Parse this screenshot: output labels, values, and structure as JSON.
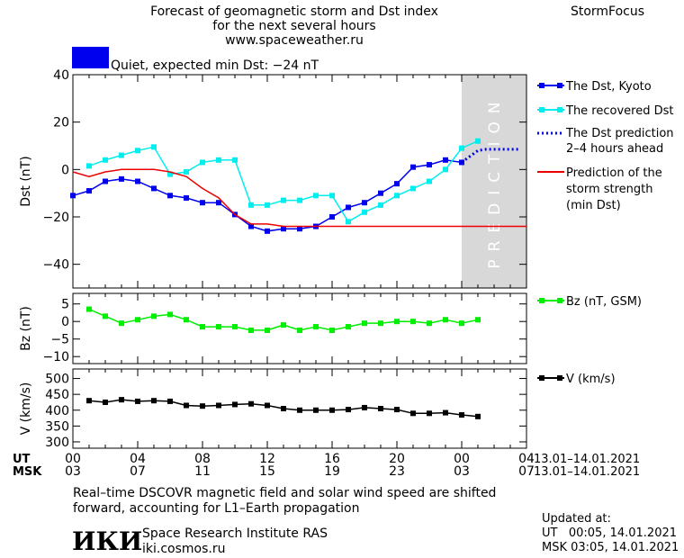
{
  "header": {
    "title_lines": [
      "Forecast of geomagnetic storm and Dst index",
      "for the next several hours",
      "www.spaceweather.ru"
    ],
    "brand": "StormFocus",
    "status_color": "#0000ee",
    "status_text": "Quiet, expected min Dst: −24 nT"
  },
  "bottom_axis": {
    "ut_label": "UT",
    "msk_label": "MSK",
    "ut_ticks": [
      "00",
      "04",
      "08",
      "12",
      "16",
      "20",
      "00",
      "04"
    ],
    "msk_ticks": [
      "03",
      "07",
      "11",
      "15",
      "19",
      "23",
      "03",
      "07"
    ],
    "ut_range": "13.01–14.01.2021",
    "msk_range": "13.01–14.01.2021"
  },
  "footer": {
    "note_lines": [
      "Real–time DSCOVR magnetic field and solar wind speed are shifted",
      "forward, accounting for L1–Earth propagation"
    ],
    "logo": "ИКИ",
    "institute": "Space Research Institute RAS",
    "site": "iki.cosmos.ru",
    "updated_label": "Updated at:",
    "updated_ut": "UT   00:05, 14.01.2021",
    "updated_msk": "MSK 03:05, 14.01.2021"
  },
  "chart_data": [
    {
      "type": "line",
      "ylabel": "Dst (nT)",
      "ylim": [
        -50,
        40
      ],
      "yticks": [
        -40,
        -20,
        0,
        20,
        40
      ],
      "xlim": [
        0,
        28
      ],
      "prediction_band": {
        "label": "PREDICTION",
        "x_from": 24,
        "x_to": 28,
        "color": "#d8d8d8"
      },
      "series": [
        {
          "name": "The Dst, Kyoto",
          "color": "#0000ee",
          "style": "solid-square",
          "x": [
            0,
            1,
            2,
            3,
            4,
            5,
            6,
            7,
            8,
            9,
            10,
            11,
            12,
            13,
            14,
            15,
            16,
            17,
            18,
            19,
            20,
            21,
            22,
            23,
            24
          ],
          "y": [
            -11,
            -9,
            -5,
            -4,
            -5,
            -8,
            -11,
            -12,
            -14,
            -14,
            -19,
            -24,
            -26,
            -25,
            -25,
            -24,
            -20,
            -16,
            -14,
            -10,
            -6,
            1,
            2,
            4,
            3
          ]
        },
        {
          "name": "The recovered Dst",
          "color": "#00eeee",
          "style": "solid-square",
          "x": [
            1,
            2,
            3,
            4,
            5,
            6,
            7,
            8,
            9,
            10,
            11,
            12,
            13,
            14,
            15,
            16,
            17,
            18,
            19,
            20,
            21,
            22,
            23,
            24,
            25
          ],
          "y": [
            1.5,
            4,
            6,
            8,
            9.5,
            -2,
            -1,
            3,
            4,
            4,
            -15,
            -15,
            -13,
            -13,
            -11,
            -11,
            -22,
            -18,
            -15,
            -11,
            -8,
            -5,
            0,
            9,
            12
          ]
        },
        {
          "name": "The Dst prediction 2–4 hours ahead",
          "color": "#0000ee",
          "style": "dotted",
          "x": [
            24,
            24.5,
            25,
            25.5,
            26,
            26.5,
            27,
            27.5
          ],
          "y": [
            3,
            5.5,
            8,
            8.5,
            8.5,
            8.5,
            8.5,
            8.5
          ]
        },
        {
          "name": "Prediction of the storm strength (min Dst)",
          "color": "#ee0000",
          "style": "solid",
          "x": [
            0,
            1,
            2,
            3,
            4,
            5,
            6,
            7,
            8,
            9,
            10,
            11,
            12,
            13,
            14,
            15,
            16,
            17,
            18,
            19,
            20,
            21,
            22,
            23,
            24,
            25,
            26,
            27,
            28
          ],
          "y": [
            -1,
            -3,
            -1,
            0,
            0,
            0,
            -1,
            -3,
            -8,
            -12,
            -19,
            -23,
            -23,
            -24,
            -24,
            -24,
            -24,
            -24,
            -24,
            -24,
            -24,
            -24,
            -24,
            -24,
            -24,
            -24,
            -24,
            -24,
            -24
          ]
        }
      ]
    },
    {
      "type": "line",
      "ylabel": "Bz (nT)",
      "ylim": [
        -12,
        8
      ],
      "yticks": [
        -10,
        -5,
        0,
        5
      ],
      "xlim": [
        0,
        28
      ],
      "series": [
        {
          "name": "Bz (nT, GSM)",
          "color": "#00ee00",
          "style": "solid-square",
          "x": [
            1,
            2,
            3,
            4,
            5,
            6,
            7,
            8,
            9,
            10,
            11,
            12,
            13,
            14,
            15,
            16,
            17,
            18,
            19,
            20,
            21,
            22,
            23,
            24,
            25
          ],
          "y": [
            3.5,
            1.5,
            -0.5,
            0.5,
            1.5,
            2,
            0.5,
            -1.5,
            -1.5,
            -1.5,
            -2.5,
            -2.5,
            -1,
            -2.5,
            -1.5,
            -2.5,
            -1.5,
            -0.5,
            -0.5,
            0,
            0,
            -0.5,
            0.5,
            -0.5,
            0.5
          ]
        }
      ]
    },
    {
      "type": "line",
      "ylabel": "V (km/s)",
      "ylim": [
        280,
        530
      ],
      "yticks": [
        300,
        350,
        400,
        450,
        500
      ],
      "xlim": [
        0,
        28
      ],
      "series": [
        {
          "name": "V (km/s)",
          "color": "#000000",
          "style": "solid-square",
          "x": [
            1,
            2,
            3,
            4,
            5,
            6,
            7,
            8,
            9,
            10,
            11,
            12,
            13,
            14,
            15,
            16,
            17,
            18,
            19,
            20,
            21,
            22,
            23,
            24,
            25
          ],
          "y": [
            430,
            425,
            433,
            428,
            430,
            428,
            415,
            413,
            415,
            418,
            420,
            415,
            405,
            400,
            400,
            400,
            402,
            408,
            405,
            402,
            390,
            390,
            392,
            385,
            380
          ]
        }
      ]
    }
  ]
}
